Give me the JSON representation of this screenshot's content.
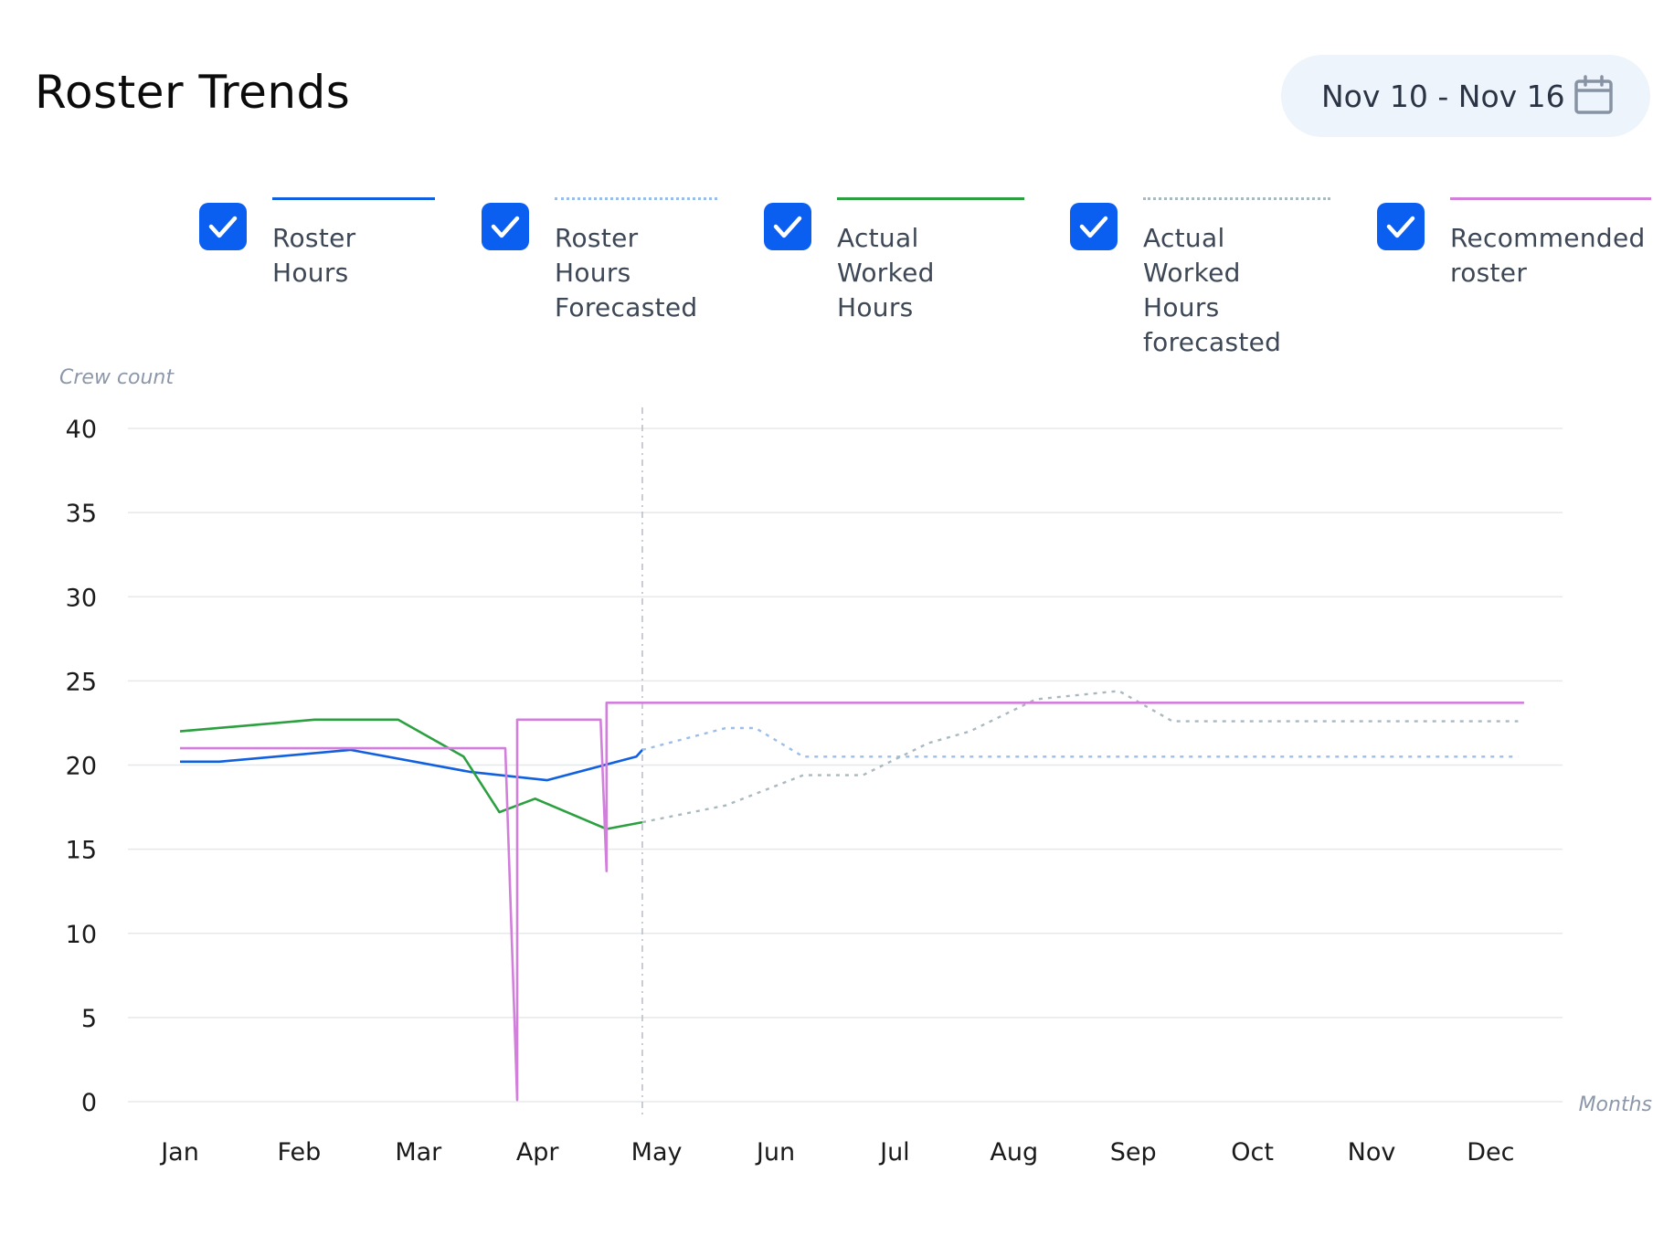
{
  "header": {
    "title": "Roster Trends",
    "date_range": "Nov 10 - Nov 16"
  },
  "icons": {
    "calendar": "calendar-icon",
    "checkbox": "checkmark-icon"
  },
  "legend": [
    {
      "id": "roster",
      "lines": [
        "Roster Hours"
      ],
      "color": "#1060e0",
      "style": "solid",
      "checked": true
    },
    {
      "id": "roster-forecast",
      "lines": [
        "Roster Hours",
        "Forecasted"
      ],
      "color": "#9cbde8",
      "style": "dotted",
      "checked": true
    },
    {
      "id": "actual",
      "lines": [
        "Actual Worked",
        "Hours"
      ],
      "color": "#2ca040",
      "style": "solid",
      "checked": true
    },
    {
      "id": "actual-forecast",
      "lines": [
        "Actual Worked",
        "Hours",
        "forecasted"
      ],
      "color": "#a9b9bf",
      "style": "dotted",
      "checked": true
    },
    {
      "id": "recommended",
      "lines": [
        "Recommended",
        "roster"
      ],
      "color": "#d27fdc",
      "style": "solid",
      "checked": true
    }
  ],
  "colors": {
    "checkbox": "#0a5ef0",
    "date_button_bg": "#eef4fc",
    "grid": "#e6e8ec",
    "forecast_divider": "#b7bcc4"
  },
  "chart_data": {
    "type": "line",
    "ylabel": "Crew count",
    "xlabel": "Months",
    "ylim": [
      0,
      40
    ],
    "yticks": [
      0,
      5,
      10,
      15,
      20,
      25,
      30,
      35,
      40
    ],
    "categories": [
      "Jan",
      "Feb",
      "Mar",
      "Apr",
      "May",
      "Jun",
      "Jul",
      "Aug",
      "Sep",
      "Oct",
      "Nov",
      "Dec"
    ],
    "grid": true,
    "forecast_start_month": 4.5,
    "series": [
      {
        "name": "Roster Hours",
        "style": "solid",
        "color": "#1060e0",
        "x": [
          0.62,
          0.95,
          2.05,
          3.05,
          3.7,
          4.45,
          4.5
        ],
        "y": [
          20.2,
          20.2,
          20.9,
          19.6,
          19.1,
          20.5,
          20.9
        ]
      },
      {
        "name": "Roster Hours Forecasted",
        "style": "dotted",
        "color": "#9cbde8",
        "x": [
          4.5,
          5.2,
          5.45,
          5.85,
          6.35,
          8.55,
          10.05,
          11.85
        ],
        "y": [
          20.9,
          22.2,
          22.2,
          20.5,
          20.5,
          20.5,
          20.5,
          20.5
        ]
      },
      {
        "name": "Actual Worked Hours",
        "style": "solid",
        "color": "#2ca040",
        "x": [
          0.62,
          1.75,
          2.45,
          3.0,
          3.3,
          3.6,
          4.2,
          4.5
        ],
        "y": [
          22.0,
          22.7,
          22.7,
          20.5,
          17.2,
          18.0,
          16.2,
          16.6
        ]
      },
      {
        "name": "Actual Worked Hours forecasted",
        "style": "dotted",
        "color": "#a9b9bf",
        "x": [
          4.5,
          5.2,
          5.85,
          6.35,
          6.9,
          7.25,
          7.8,
          8.5,
          8.95,
          10.05,
          11.85
        ],
        "y": [
          16.6,
          17.6,
          19.4,
          19.4,
          21.3,
          22.0,
          23.9,
          24.4,
          22.6,
          22.6,
          22.6
        ]
      },
      {
        "name": "Recommended roster",
        "style": "solid",
        "color": "#d27fdc",
        "x": [
          0.62,
          3.35,
          3.35,
          3.45,
          3.45,
          4.15,
          4.15,
          4.2,
          4.2,
          11.9
        ],
        "y": [
          21.0,
          21.0,
          21.0,
          0.1,
          22.7,
          22.7,
          22.7,
          13.7,
          23.7,
          23.7
        ]
      }
    ]
  }
}
